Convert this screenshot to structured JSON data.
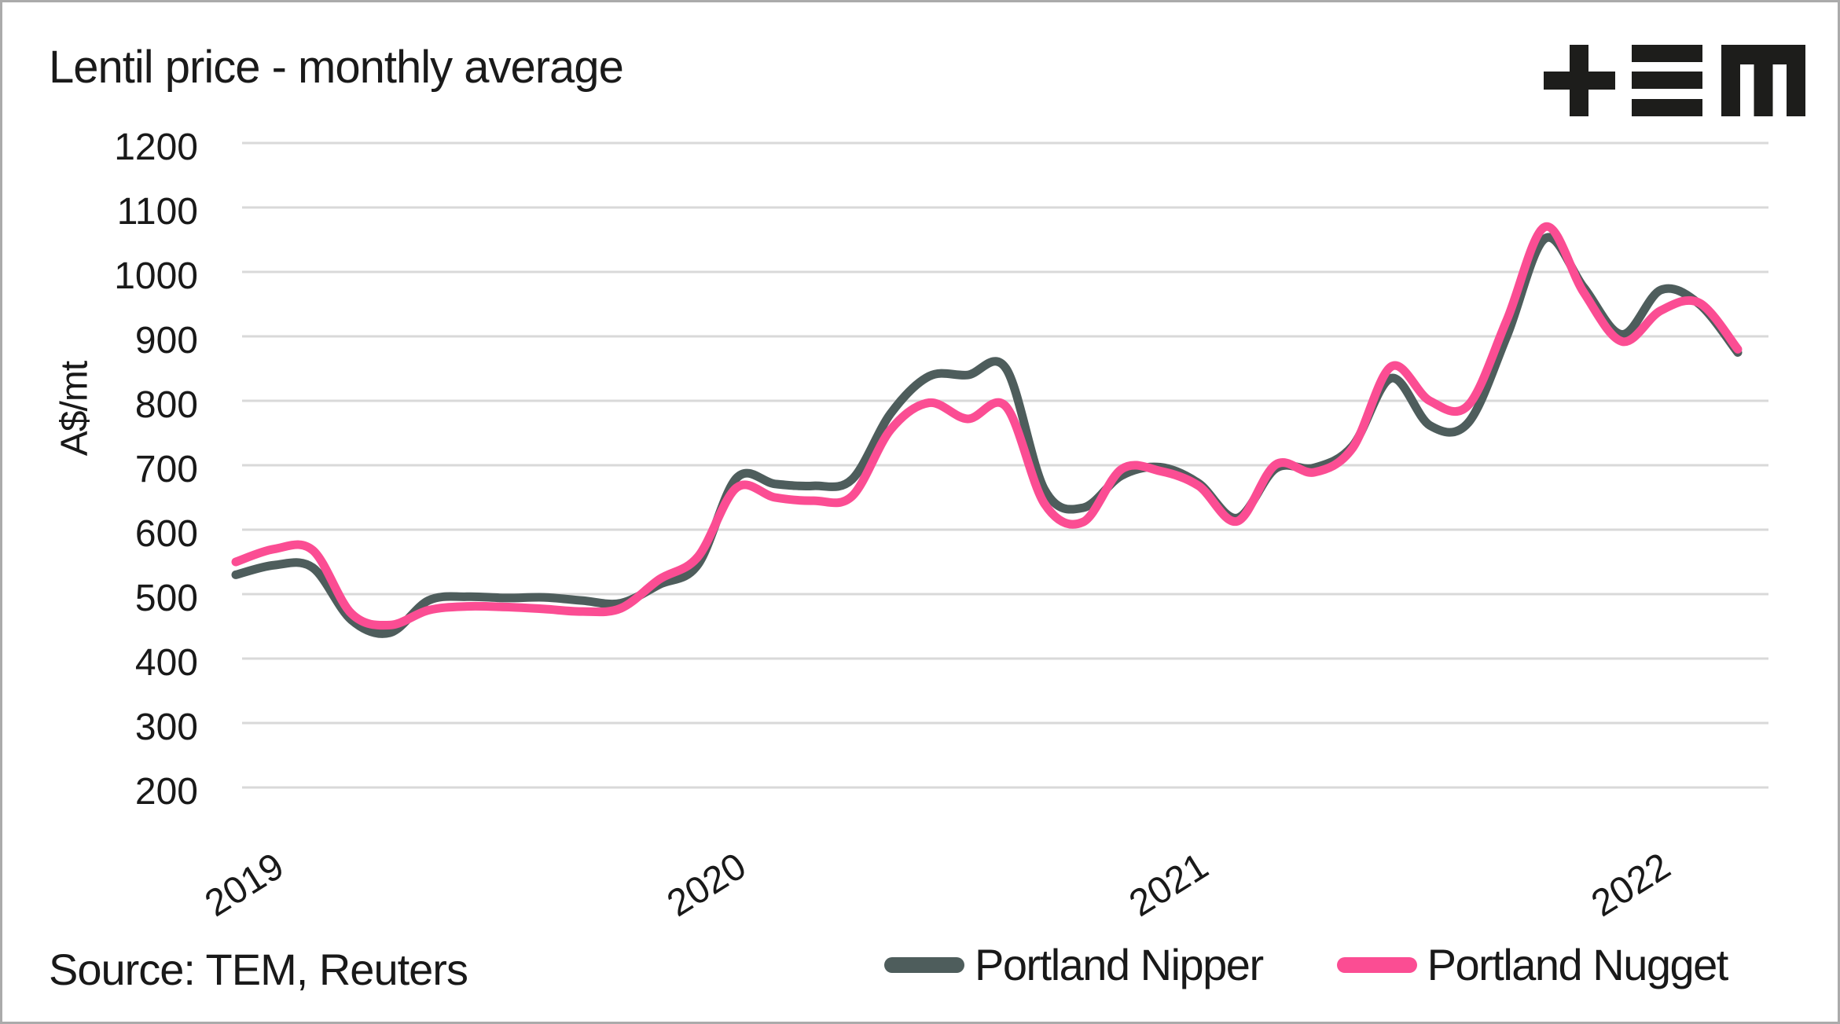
{
  "title": "Lentil price - monthly average",
  "source_note": "Source: TEM, Reuters",
  "logo": {
    "name": "TEM",
    "color": "#1d1d1b"
  },
  "colors": {
    "background": "#ffffff",
    "frame_border": "#ababab",
    "gridline": "#d9d9d9",
    "text": "#191919",
    "nipper": "#4e5d5c",
    "nugget": "#fb4d93"
  },
  "y_axis": {
    "unit_label": "A$/mt",
    "ticks": [
      1200,
      1100,
      1000,
      900,
      800,
      700,
      600,
      500,
      400,
      300,
      200
    ]
  },
  "x_axis": {
    "ticks": [
      "2019",
      "2020",
      "2021",
      "2022"
    ]
  },
  "legend": [
    {
      "label": "Portland Nipper",
      "color": "#4e5d5c"
    },
    {
      "label": "Portland Nugget",
      "color": "#fb4d93"
    }
  ],
  "chart_data": {
    "type": "line",
    "title": "Lentil price - monthly average",
    "xlabel": "",
    "ylabel": "A$/mt",
    "ylim": [
      150,
      1250
    ],
    "grid": "horizontal",
    "legend_position": "bottom",
    "x": [
      "2019-01",
      "2019-02",
      "2019-03",
      "2019-04",
      "2019-05",
      "2019-06",
      "2019-07",
      "2019-08",
      "2019-09",
      "2019-10",
      "2019-11",
      "2019-12",
      "2020-01",
      "2020-02",
      "2020-03",
      "2020-04",
      "2020-05",
      "2020-06",
      "2020-07",
      "2020-08",
      "2020-09",
      "2020-10",
      "2020-11",
      "2020-12",
      "2021-01",
      "2021-02",
      "2021-03",
      "2021-04",
      "2021-05",
      "2021-06",
      "2021-07",
      "2021-08",
      "2021-09",
      "2021-10",
      "2021-11",
      "2021-12",
      "2022-01",
      "2022-02",
      "2022-03",
      "2022-04"
    ],
    "series": [
      {
        "name": "Portland Nipper",
        "color": "#4e5d5c",
        "values": [
          530,
          545,
          541,
          460,
          440,
          490,
          496,
          494,
          495,
          490,
          486,
          515,
          546,
          680,
          671,
          668,
          678,
          780,
          838,
          840,
          850,
          662,
          634,
          684,
          697,
          672,
          618,
          695,
          696,
          730,
          835,
          762,
          766,
          900,
          1052,
          976,
          903,
          972,
          950,
          875
        ]
      },
      {
        "name": "Portland Nugget",
        "color": "#fb4d93",
        "values": [
          550,
          570,
          568,
          470,
          452,
          475,
          481,
          480,
          477,
          473,
          478,
          523,
          558,
          665,
          650,
          645,
          652,
          755,
          797,
          772,
          791,
          640,
          612,
          694,
          691,
          668,
          613,
          701,
          689,
          727,
          853,
          800,
          793,
          925,
          1070,
          968,
          892,
          940,
          952,
          880
        ]
      }
    ]
  }
}
